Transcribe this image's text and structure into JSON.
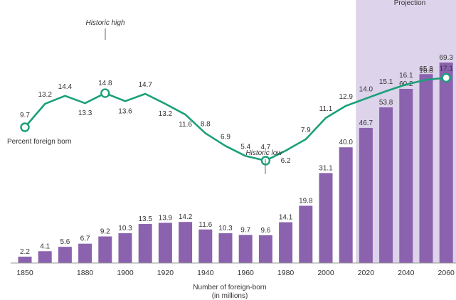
{
  "chart_data": {
    "type": "bar+line",
    "x": [
      1850,
      1860,
      1870,
      1880,
      1890,
      1900,
      1910,
      1920,
      1930,
      1940,
      1950,
      1960,
      1970,
      1980,
      1990,
      2000,
      2010,
      2020,
      2030,
      2040,
      2050,
      2060
    ],
    "series": [
      {
        "name": "Number of foreign-born (in millions)",
        "type": "bar",
        "values": [
          2.2,
          4.1,
          5.6,
          6.7,
          9.2,
          10.3,
          13.5,
          13.9,
          14.2,
          11.6,
          10.3,
          9.7,
          9.6,
          14.1,
          19.8,
          31.1,
          40.0,
          46.7,
          53.8,
          60.2,
          65.3,
          69.3
        ],
        "labels": [
          "2.2",
          "4.1",
          "5.6",
          "6.7",
          "9.2",
          "10.3",
          "13.5",
          "13.9",
          "14.2",
          "11.6",
          "10.3",
          "9.7",
          "9.6",
          "14.1",
          "19.8",
          "31.1",
          "40.0",
          "46.7",
          "53.8",
          "60.2",
          "65.3",
          "69.3"
        ]
      },
      {
        "name": "Percent foreign born",
        "type": "line",
        "values": [
          9.7,
          13.2,
          14.4,
          13.3,
          14.8,
          13.6,
          14.7,
          13.2,
          11.6,
          8.8,
          6.9,
          5.4,
          4.7,
          6.2,
          7.9,
          11.1,
          12.9,
          14.0,
          15.1,
          16.1,
          16.8,
          17.1
        ],
        "labels": [
          "9.7",
          "13.2",
          "14.4",
          "13.3",
          "14.8",
          "13.6",
          "14.7",
          "13.2",
          "11.6",
          "8.8",
          "6.9",
          "5.4",
          "4.7",
          "6.2",
          "7.9",
          "11.1",
          "12.9",
          "14.0",
          "15.1",
          "16.1",
          "16.8",
          "17.1"
        ]
      }
    ],
    "x_ticks": [
      "1850",
      "1880",
      "1900",
      "1920",
      "1940",
      "1960",
      "1980",
      "2000",
      "2020",
      "2040",
      "2060"
    ],
    "xlabel_line1": "Number of foreign-born",
    "xlabel_line2": "(in millions)",
    "line_label": "Percent foreign born",
    "annotations": {
      "historic_high": "Historic high",
      "historic_low": "Historic low",
      "projection": "Projection"
    },
    "projection_start": 2020,
    "colors": {
      "bar": "#8a62ae",
      "line": "#1aa079",
      "projection_band": "#ddd3ea",
      "axis": "#999999"
    }
  }
}
